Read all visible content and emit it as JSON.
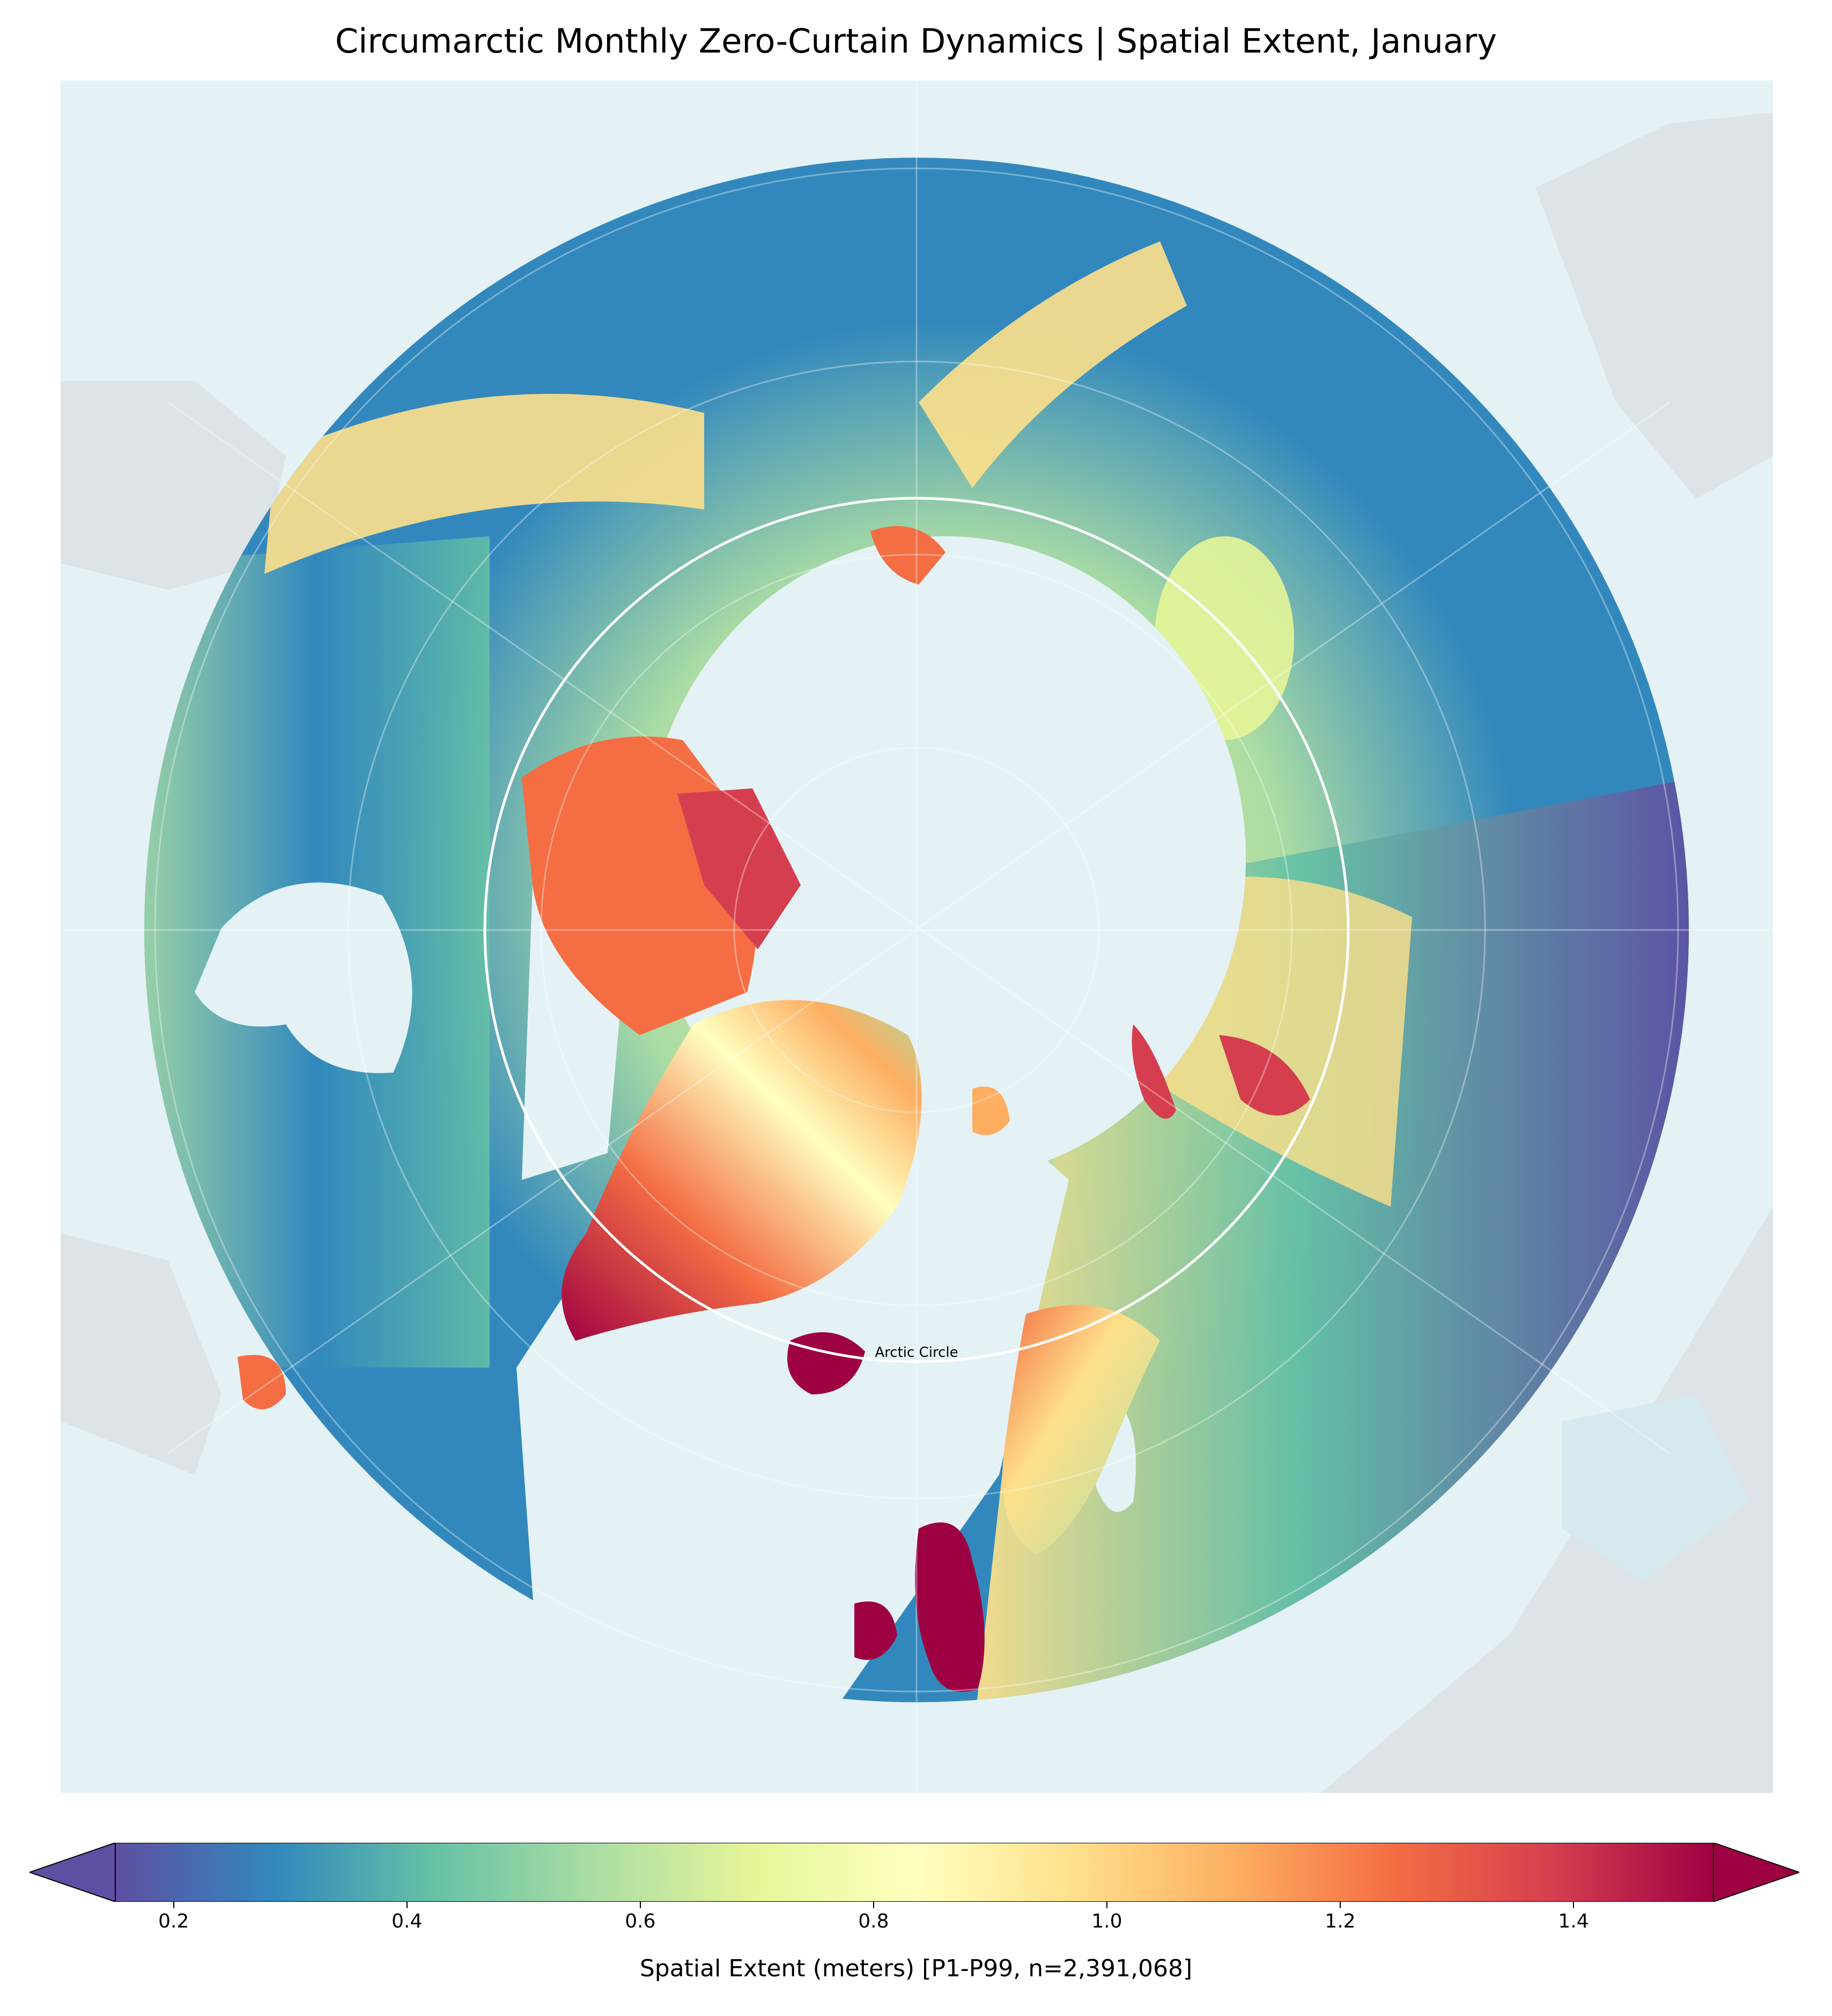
{
  "title": "Circumarctic Monthly Zero-Curtain Dynamics | Spatial Extent, January",
  "map": {
    "annotation": "Arctic Circle",
    "colors": {
      "ocean": "#e4f2f6",
      "land_outside": "#dde3e6",
      "circle": "#ffffff"
    }
  },
  "colorbar": {
    "label": "Spatial Extent (meters) [P1-P99, n=2,391,068]",
    "ticks": [
      "0.2",
      "0.4",
      "0.6",
      "0.8",
      "1.0",
      "1.2",
      "1.4"
    ],
    "tick_values": [
      0.2,
      0.4,
      0.6,
      0.8,
      1.0,
      1.2,
      1.4
    ],
    "range": [
      0.15,
      1.52
    ],
    "colormap": "Spectral_r",
    "stops": [
      "#5e4fa2",
      "#3288bd",
      "#66c2a5",
      "#abdda4",
      "#e6f598",
      "#ffffbf",
      "#fee08b",
      "#fdae61",
      "#f46d43",
      "#d53e4f",
      "#9e0142"
    ]
  }
}
